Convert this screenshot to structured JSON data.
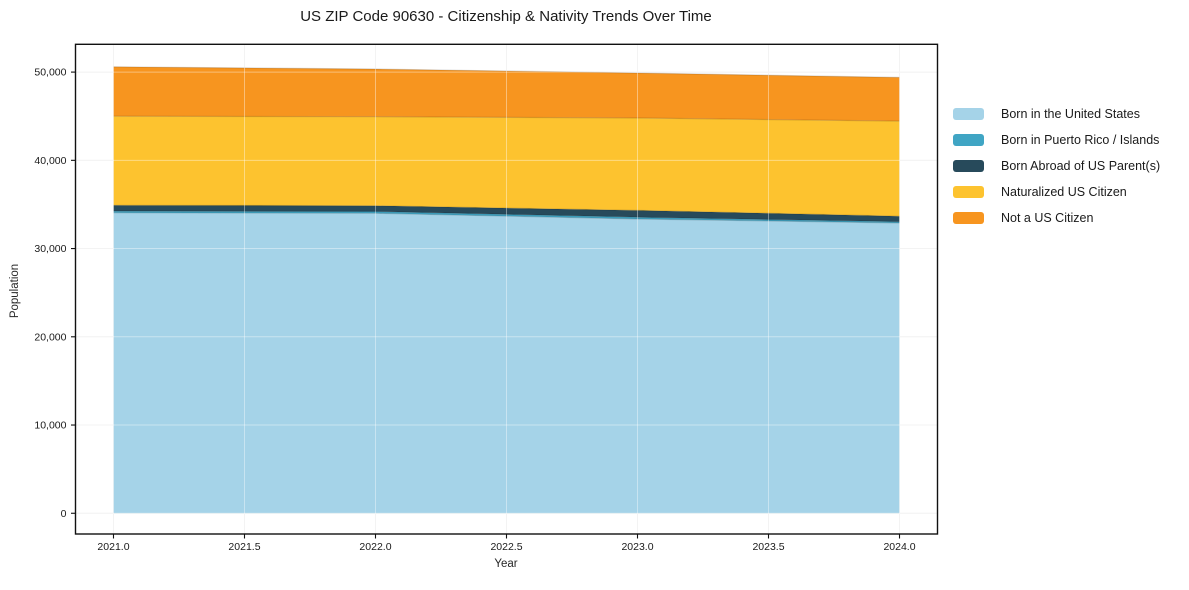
{
  "page": {
    "background": "#ffffff"
  },
  "chart_data": {
    "type": "area",
    "stacked": true,
    "title": "US ZIP Code 90630 - Citizenship & Nativity Trends Over Time",
    "xlabel": "Year",
    "ylabel": "Population",
    "x": [
      2021,
      2022,
      2023,
      2024
    ],
    "series": [
      {
        "name": "Born in the United States",
        "color": "#A5D3E8",
        "values": [
          34050,
          34000,
          33350,
          32900
        ]
      },
      {
        "name": "Born in Puerto Rico / Islands",
        "color": "#40A5C4",
        "values": [
          200,
          200,
          200,
          150
        ]
      },
      {
        "name": "Born Abroad of US Parent(s)",
        "color": "#274A5B",
        "values": [
          650,
          660,
          780,
          620
        ]
      },
      {
        "name": "Naturalized US Citizen",
        "color": "#FDC32F",
        "values": [
          10100,
          10090,
          10470,
          10780
        ]
      },
      {
        "name": "Not a US Citizen",
        "color": "#F7951F",
        "values": [
          5600,
          5400,
          5100,
          4950
        ]
      }
    ],
    "totals": [
      50600,
      50350,
      49900,
      49400
    ],
    "x_ticks": [
      2021.0,
      2021.5,
      2022.0,
      2022.5,
      2023.0,
      2023.5,
      2024.0
    ],
    "x_tick_labels": [
      "2021.0",
      "2021.5",
      "2022.0",
      "2022.5",
      "2023.0",
      "2023.5",
      "2024.0"
    ],
    "y_ticks": [
      0,
      10000,
      20000,
      30000,
      40000,
      50000
    ],
    "y_tick_labels": [
      "0",
      "10,000",
      "20,000",
      "30,000",
      "40,000",
      "50,000"
    ],
    "xlim": [
      2020.855,
      2024.145
    ],
    "ylim": [
      -2350,
      53150
    ],
    "grid": true,
    "legend_position": "right",
    "colors": {
      "frame": "#111111",
      "grid_margin": "#ececec",
      "grid_over_area": "rgba(255,255,255,0.4)",
      "tick_text": "#1a1a1a"
    }
  }
}
